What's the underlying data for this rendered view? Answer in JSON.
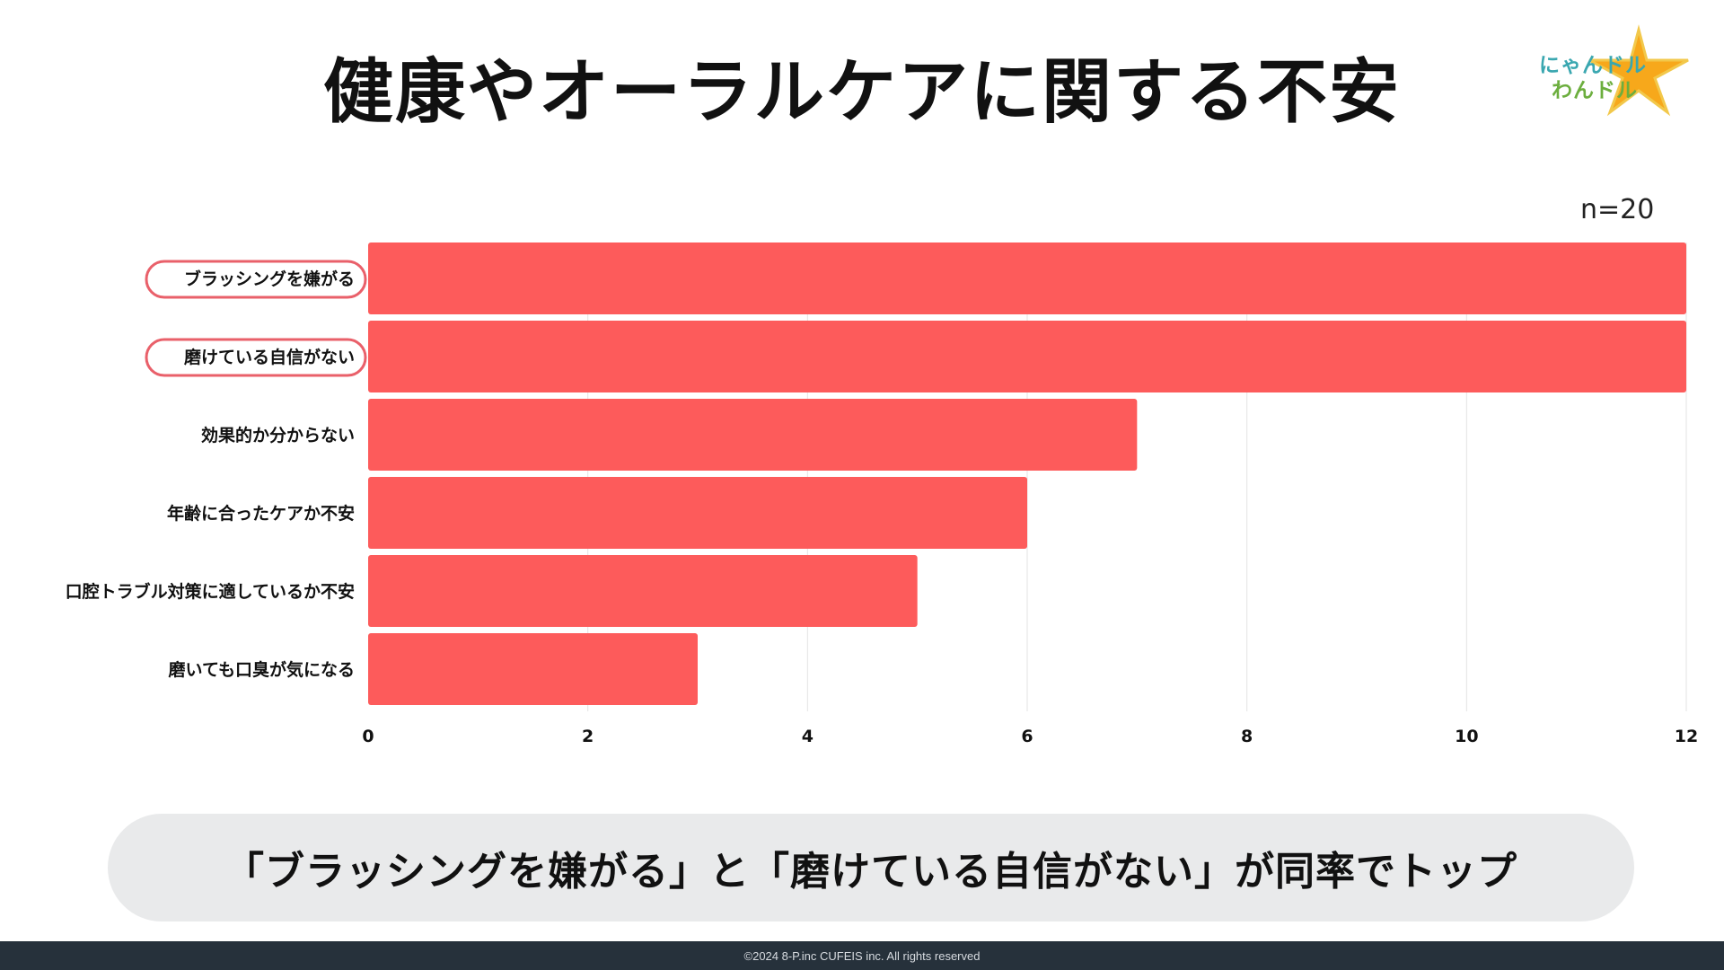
{
  "title": "健康やオーラルケアに関する不安",
  "logo": {
    "line1": "にゃんドル",
    "line2": "わんドル"
  },
  "sample_size": "n=20",
  "chart_data": {
    "type": "bar",
    "orientation": "horizontal",
    "categories": [
      "ブラッシングを嫌がる",
      "磨けている自信がない",
      "効果的か分からない",
      "年齢に合ったケアか不安",
      "口腔トラブル対策に適しているか不安",
      "磨いても口臭が気になる"
    ],
    "values": [
      12,
      12,
      7,
      6,
      5,
      3
    ],
    "highlighted": [
      true,
      true,
      false,
      false,
      false,
      false
    ],
    "xlim": [
      0,
      12
    ],
    "xticks": [
      0,
      2,
      4,
      6,
      8,
      10,
      12
    ],
    "bar_color": "#fd5b5b",
    "highlight_outline_color": "#e9606a",
    "grid": true
  },
  "summary": "「ブラッシングを嫌がる」と「磨けている自信がない」が同率でトップ",
  "copyright": "©2024 8-P.inc CUFEIS inc. All rights reserved"
}
